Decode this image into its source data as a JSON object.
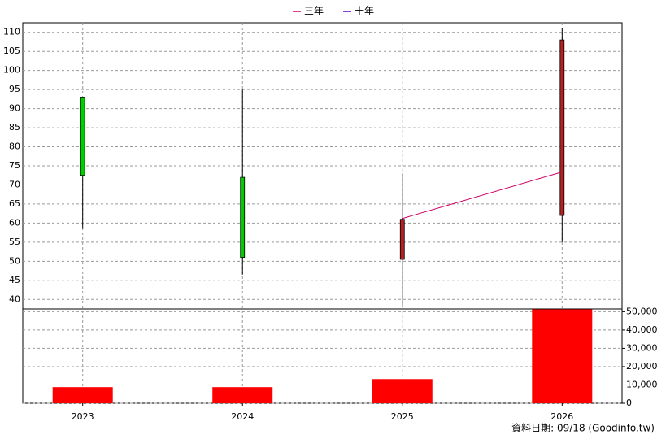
{
  "chart_data": {
    "type": "candlestick",
    "x": [
      2023,
      2024,
      2025,
      2026
    ],
    "xlim": [
      2022.625,
      2026.375
    ],
    "xticks": [
      2023,
      2024,
      2025,
      2026
    ],
    "ylim": [
      37.5,
      112.5
    ],
    "yticks": [
      40,
      45,
      50,
      55,
      60,
      65,
      70,
      75,
      80,
      85,
      90,
      95,
      100,
      105,
      110
    ],
    "y2lim": [
      0,
      51500
    ],
    "y2ticks": [
      0,
      {
        "value": 10000,
        "label": "10,000"
      },
      {
        "value": 20000,
        "label": "20,000"
      },
      {
        "value": 30000,
        "label": "30,000"
      },
      {
        "value": 40000,
        "label": "40,000"
      },
      {
        "value": 50000,
        "label": "50,000"
      }
    ],
    "grid": true,
    "up_color": "#b22222",
    "down_color": "#00cc00",
    "candles": {
      "open": [
        93,
        72,
        50.5,
        62
      ],
      "high": [
        93,
        95,
        73,
        111
      ],
      "low": [
        58.5,
        46.5,
        38,
        55
      ],
      "close": [
        72.5,
        51,
        61,
        108
      ]
    },
    "volume": {
      "axis": "y2",
      "color": "#ff0000",
      "values": [
        8800,
        8800,
        13200,
        51300
      ]
    },
    "series": [
      {
        "name": "三年",
        "color": "#cc0066",
        "values": [
          null,
          null,
          61.2,
          73.4
        ]
      },
      {
        "name": "十年",
        "color": "#6600cc",
        "values": [
          null,
          null,
          null,
          null
        ]
      }
    ],
    "legend": "top",
    "footer": "資料日期: 09/18  (Goodinfo.tw)"
  }
}
